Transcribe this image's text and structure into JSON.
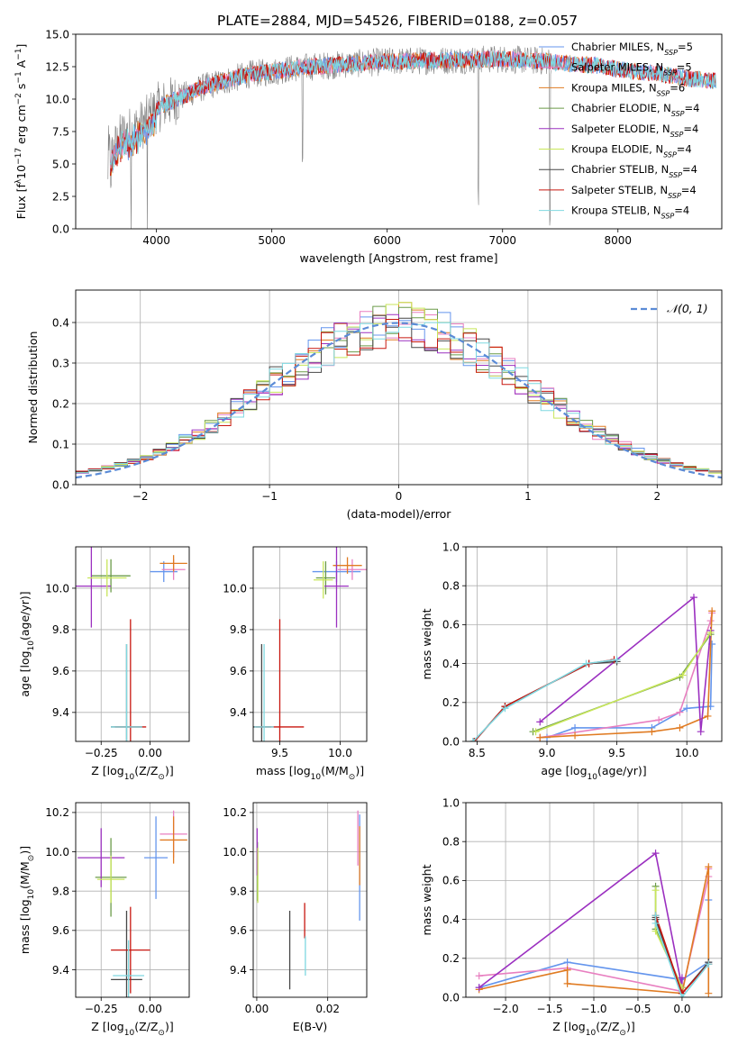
{
  "figure_title": "PLATE=2884, MJD=54526, FIBERID=0188, z=0.057",
  "colors": {
    "chabrier_miles": "#6495ed",
    "salpeter_miles": "#e87fc0",
    "kroupa_miles": "#e07b22",
    "chabrier_elodie": "#6b9b49",
    "salpeter_elodie": "#9b30c0",
    "kroupa_elodie": "#c8e65a",
    "chabrier_stelib": "#474747",
    "salpeter_stelib": "#c8160f",
    "kroupa_stelib": "#7fd8e0",
    "data": "#808080"
  },
  "chart_data": [
    {
      "id": "spectrum",
      "type": "line",
      "xlabel": "wavelength [Angstrom, rest frame]",
      "ylabel_parts": [
        "Flux [f",
        "λ",
        "10",
        "−17",
        " erg cm",
        "−2",
        " s",
        "−1",
        " A",
        "−1",
        "]"
      ],
      "xlim": [
        3300,
        8900
      ],
      "ylim": [
        0,
        15
      ],
      "xticks": [
        4000,
        5000,
        6000,
        7000,
        8000
      ],
      "xtick_labels": [
        "4000",
        "5000",
        "6000",
        "7000",
        "8000"
      ],
      "yticks": [
        0,
        2.5,
        5,
        7.5,
        10,
        12.5,
        15
      ],
      "ytick_labels": [
        "0.0",
        "2.5",
        "5.0",
        "7.5",
        "10.0",
        "12.5",
        "15.0"
      ],
      "grid": false,
      "legend_position": "right",
      "continuum": {
        "x": [
          3600,
          3700,
          3800,
          3900,
          4000,
          4200,
          4400,
          4600,
          4800,
          5000,
          5200,
          5500,
          6000,
          6500,
          7000,
          7400,
          7600,
          7800,
          8000,
          8200,
          8400,
          8600,
          8800
        ],
        "y": [
          5.5,
          7.2,
          7.6,
          8.2,
          9.3,
          10.1,
          10.9,
          11.4,
          11.9,
          12.1,
          12.4,
          12.6,
          12.9,
          13.0,
          13.1,
          12.9,
          12.7,
          12.6,
          12.3,
          12.1,
          11.9,
          11.6,
          11.4
        ]
      },
      "model_x_range": [
        3600,
        8850
      ],
      "data_x_range": [
        3580,
        7420
      ],
      "absorption_lines": [
        {
          "x": 3780,
          "depth": 12.5
        },
        {
          "x": 3920,
          "depth": 9.0
        },
        {
          "x": 5265,
          "depth": 8.0
        },
        {
          "x": 6790,
          "depth": 11.0
        },
        {
          "x": 7410,
          "depth": 12.5
        }
      ],
      "legend": [
        {
          "key": "chabrier_miles",
          "prefix": "Chabrier MILES, N",
          "sub": "SSP",
          "suffix": "=5"
        },
        {
          "key": "salpeter_miles",
          "prefix": "Salpeter MILES, N",
          "sub": "SSP",
          "suffix": "=5"
        },
        {
          "key": "kroupa_miles",
          "prefix": "Kroupa MILES, N",
          "sub": "SSP",
          "suffix": "=6"
        },
        {
          "key": "chabrier_elodie",
          "prefix": "Chabrier ELODIE, N",
          "sub": "SSP",
          "suffix": "=4"
        },
        {
          "key": "salpeter_elodie",
          "prefix": "Salpeter ELODIE, N",
          "sub": "SSP",
          "suffix": "=4"
        },
        {
          "key": "kroupa_elodie",
          "prefix": "Kroupa ELODIE, N",
          "sub": "SSP",
          "suffix": "=4"
        },
        {
          "key": "chabrier_stelib",
          "prefix": "Chabrier STELIB, N",
          "sub": "SSP",
          "suffix": "=4"
        },
        {
          "key": "salpeter_stelib",
          "prefix": "Salpeter STELIB, N",
          "sub": "SSP",
          "suffix": "=4"
        },
        {
          "key": "kroupa_stelib",
          "prefix": "Kroupa STELIB, N",
          "sub": "SSP",
          "suffix": "=4"
        }
      ]
    },
    {
      "id": "residuals",
      "type": "histogram",
      "xlabel": "(data-model)/error",
      "ylabel": "Normed distribution",
      "xlim": [
        -2.5,
        2.5
      ],
      "ylim": [
        0,
        0.48
      ],
      "xticks": [
        -2,
        -1,
        0,
        1,
        2
      ],
      "xtick_labels": [
        "−2",
        "−1",
        "0",
        "1",
        "2"
      ],
      "yticks": [
        0,
        0.1,
        0.2,
        0.3,
        0.4
      ],
      "ytick_labels": [
        "0.0",
        "0.1",
        "0.2",
        "0.3",
        "0.4"
      ],
      "grid": true,
      "bin_width": 0.1,
      "bins_start": -2.5,
      "series_keys": [
        "chabrier_miles",
        "salpeter_miles",
        "kroupa_miles",
        "chabrier_elodie",
        "salpeter_elodie",
        "kroupa_elodie",
        "chabrier_stelib",
        "salpeter_stelib",
        "kroupa_stelib"
      ],
      "normal_curve": {
        "label": "𝒩(0, 1)",
        "mean": 0,
        "sigma": 1
      },
      "legend_position": "top-right"
    },
    {
      "id": "age_vs_Z",
      "type": "errorbar",
      "xlabel_parts": [
        "Z [log",
        "10",
        "(Z/Z",
        "⊙",
        ")]"
      ],
      "ylabel_parts": [
        "age  [log",
        "10",
        "(age/yr)]"
      ],
      "xlim": [
        -0.38,
        0.2
      ],
      "ylim": [
        9.26,
        10.2
      ],
      "xticks": [
        -0.25,
        0.0
      ],
      "xtick_labels": [
        "−0.25",
        "0.00"
      ],
      "yticks": [
        9.4,
        9.6,
        9.8,
        10.0
      ],
      "ytick_labels": [
        "9.4",
        "9.6",
        "9.8",
        "10.0"
      ],
      "grid": true,
      "points": [
        {
          "key": "chabrier_miles",
          "x": 0.07,
          "y": 10.08,
          "xerr": 0.07,
          "yerr": 0.05
        },
        {
          "key": "salpeter_miles",
          "x": 0.12,
          "y": 10.09,
          "xerr": 0.06,
          "yerr": 0.05
        },
        {
          "key": "kroupa_miles",
          "x": 0.12,
          "y": 10.12,
          "xerr": 0.07,
          "yerr": 0.04
        },
        {
          "key": "chabrier_elodie",
          "x": -0.2,
          "y": 10.06,
          "xerr": 0.1,
          "yerr": 0.08
        },
        {
          "key": "salpeter_elodie",
          "x": -0.3,
          "y": 10.01,
          "xerr": 0.1,
          "yerr": 0.2
        },
        {
          "key": "kroupa_elodie",
          "x": -0.22,
          "y": 10.05,
          "xerr": 0.1,
          "yerr": 0.09
        },
        {
          "key": "chabrier_stelib",
          "x": -0.12,
          "y": 9.33,
          "xerr": 0.08,
          "yerr": 0.4
        },
        {
          "key": "salpeter_stelib",
          "x": -0.1,
          "y": 9.33,
          "xerr": 0.08,
          "yerr": 0.52
        },
        {
          "key": "kroupa_stelib",
          "x": -0.12,
          "y": 9.33,
          "xerr": 0.08,
          "yerr": 0.4
        }
      ]
    },
    {
      "id": "age_vs_mass",
      "type": "errorbar",
      "xlabel_parts": [
        "mass [log",
        "10",
        "(M/M",
        "⊙",
        ")]"
      ],
      "xlim": [
        9.28,
        10.22
      ],
      "ylim": [
        9.26,
        10.2
      ],
      "xticks": [
        9.5,
        10.0
      ],
      "xtick_labels": [
        "9.5",
        "10.0"
      ],
      "yticks": [
        9.4,
        9.6,
        9.8,
        10.0
      ],
      "ytick_labels": [
        "9.4",
        "9.6",
        "9.8",
        "10.0"
      ],
      "grid": true,
      "points": [
        {
          "key": "chabrier_miles",
          "x": 9.97,
          "y": 10.08,
          "xerr": 0.2,
          "yerr": 0.05
        },
        {
          "key": "salpeter_miles",
          "x": 10.1,
          "y": 10.09,
          "xerr": 0.12,
          "yerr": 0.05
        },
        {
          "key": "kroupa_miles",
          "x": 10.06,
          "y": 10.11,
          "xerr": 0.12,
          "yerr": 0.04
        },
        {
          "key": "chabrier_elodie",
          "x": 9.88,
          "y": 10.05,
          "xerr": 0.08,
          "yerr": 0.08
        },
        {
          "key": "salpeter_elodie",
          "x": 9.97,
          "y": 10.01,
          "xerr": 0.1,
          "yerr": 0.2
        },
        {
          "key": "kroupa_elodie",
          "x": 9.86,
          "y": 10.04,
          "xerr": 0.08,
          "yerr": 0.09
        },
        {
          "key": "chabrier_stelib",
          "x": 9.35,
          "y": 9.33,
          "xerr": 0.08,
          "yerr": 0.4
        },
        {
          "key": "salpeter_stelib",
          "x": 9.5,
          "y": 9.33,
          "xerr": 0.2,
          "yerr": 0.52
        },
        {
          "key": "kroupa_stelib",
          "x": 9.37,
          "y": 9.33,
          "xerr": 0.08,
          "yerr": 0.4
        }
      ]
    },
    {
      "id": "weights_vs_age",
      "type": "line",
      "xlabel_parts": [
        "age  [log",
        "10",
        "(age/yr)]"
      ],
      "ylabel": "mass weight",
      "xlim": [
        8.42,
        10.25
      ],
      "ylim": [
        0,
        1
      ],
      "xticks": [
        8.5,
        9.0,
        9.5,
        10.0
      ],
      "xtick_labels": [
        "8.5",
        "9.0",
        "9.5",
        "10.0"
      ],
      "yticks": [
        0,
        0.2,
        0.4,
        0.6,
        0.8,
        1.0
      ],
      "ytick_labels": [
        "0.0",
        "0.2",
        "0.4",
        "0.6",
        "0.8",
        "1.0"
      ],
      "grid": true,
      "series": [
        {
          "key": "chabrier_miles",
          "x": [
            9.0,
            9.2,
            9.75,
            10.0,
            10.17,
            10.18
          ],
          "y": [
            0.02,
            0.07,
            0.07,
            0.17,
            0.18,
            0.5
          ]
        },
        {
          "key": "salpeter_miles",
          "x": [
            8.95,
            9.8,
            9.95,
            10.17,
            10.18
          ],
          "y": [
            0.02,
            0.11,
            0.15,
            0.62,
            0.66
          ]
        },
        {
          "key": "kroupa_miles",
          "x": [
            8.95,
            9.2,
            9.75,
            9.95,
            10.15,
            10.18
          ],
          "y": [
            0.02,
            0.03,
            0.05,
            0.07,
            0.13,
            0.67
          ]
        },
        {
          "key": "chabrier_elodie",
          "x": [
            8.9,
            9.95,
            10.17
          ],
          "y": [
            0.05,
            0.33,
            0.55
          ]
        },
        {
          "key": "salpeter_elodie",
          "x": [
            8.95,
            10.05,
            10.1,
            10.17
          ],
          "y": [
            0.1,
            0.74,
            0.05,
            0.57
          ]
        },
        {
          "key": "kroupa_elodie",
          "x": [
            8.92,
            9.97,
            10.17
          ],
          "y": [
            0.05,
            0.34,
            0.56
          ]
        },
        {
          "key": "chabrier_stelib",
          "x": [
            8.48,
            8.7,
            9.3,
            9.5
          ],
          "y": [
            0.0,
            0.18,
            0.4,
            0.41
          ]
        },
        {
          "key": "salpeter_stelib",
          "x": [
            8.48,
            8.7,
            9.3,
            9.48
          ],
          "y": [
            0.0,
            0.18,
            0.4,
            0.42
          ]
        },
        {
          "key": "kroupa_stelib",
          "x": [
            8.47,
            8.7,
            9.28,
            9.5
          ],
          "y": [
            0.0,
            0.17,
            0.4,
            0.42
          ]
        }
      ]
    },
    {
      "id": "mass_vs_Z",
      "type": "errorbar",
      "xlabel_parts": [
        "Z [log",
        "10",
        "(Z/Z",
        "⊙",
        ")]"
      ],
      "ylabel_parts": [
        "mass [log",
        "10",
        "(M/M",
        "⊙",
        ")]"
      ],
      "xlim": [
        -0.38,
        0.2
      ],
      "ylim": [
        9.26,
        10.25
      ],
      "xticks": [
        -0.25,
        0.0
      ],
      "xtick_labels": [
        "−0.25",
        "0.00"
      ],
      "yticks": [
        9.4,
        9.6,
        9.8,
        10.0,
        10.2
      ],
      "ytick_labels": [
        "9.4",
        "9.6",
        "9.8",
        "10.0",
        "10.2"
      ],
      "grid": true,
      "points": [
        {
          "key": "chabrier_miles",
          "x": 0.03,
          "y": 9.97,
          "xerr": 0.06,
          "yerr": 0.21
        },
        {
          "key": "salpeter_miles",
          "x": 0.12,
          "y": 10.09,
          "xerr": 0.07,
          "yerr": 0.12
        },
        {
          "key": "kroupa_miles",
          "x": 0.12,
          "y": 10.06,
          "xerr": 0.07,
          "yerr": 0.12
        },
        {
          "key": "chabrier_elodie",
          "x": -0.2,
          "y": 9.87,
          "xerr": 0.08,
          "yerr": 0.2
        },
        {
          "key": "salpeter_elodie",
          "x": -0.25,
          "y": 9.97,
          "xerr": 0.12,
          "yerr": 0.15
        },
        {
          "key": "kroupa_elodie",
          "x": -0.2,
          "y": 9.86,
          "xerr": 0.07,
          "yerr": 0.12
        },
        {
          "key": "chabrier_stelib",
          "x": -0.12,
          "y": 9.35,
          "xerr": 0.08,
          "yerr": 0.35
        },
        {
          "key": "salpeter_stelib",
          "x": -0.1,
          "y": 9.5,
          "xerr": 0.1,
          "yerr": 0.22
        },
        {
          "key": "kroupa_stelib",
          "x": -0.11,
          "y": 9.37,
          "xerr": 0.08,
          "yerr": 0.18
        }
      ]
    },
    {
      "id": "mass_vs_ebv",
      "type": "errorbar",
      "xlabel": "E(B-V)",
      "xlim": [
        -0.001,
        0.031
      ],
      "ylim": [
        9.26,
        10.25
      ],
      "xticks": [
        0.0,
        0.02
      ],
      "xtick_labels": [
        "0.00",
        "0.02"
      ],
      "yticks": [
        9.4,
        9.6,
        9.8,
        10.0,
        10.2
      ],
      "ytick_labels": [
        "9.4",
        "9.6",
        "9.8",
        "10.0",
        "10.2"
      ],
      "grid": true,
      "points": [
        {
          "key": "chabrier_miles",
          "x": 0.029,
          "y": 9.92,
          "xerr": 0.0,
          "yerr": 0.27
        },
        {
          "key": "salpeter_miles",
          "x": 0.0285,
          "y": 10.07,
          "xerr": 0.0,
          "yerr": 0.14
        },
        {
          "key": "kroupa_miles",
          "x": 0.029,
          "y": 9.98,
          "xerr": 0.0,
          "yerr": 0.15
        },
        {
          "key": "chabrier_elodie",
          "x": 0.0002,
          "y": 9.9,
          "xerr": 0.0,
          "yerr": 0.15
        },
        {
          "key": "salpeter_elodie",
          "x": 0.0001,
          "y": 10.0,
          "xerr": 0.0,
          "yerr": 0.12
        },
        {
          "key": "kroupa_elodie",
          "x": 0.0003,
          "y": 9.88,
          "xerr": 0.0,
          "yerr": 0.14
        },
        {
          "key": "chabrier_stelib",
          "x": 0.0093,
          "y": 9.5,
          "xerr": 0.0,
          "yerr": 0.2
        },
        {
          "key": "salpeter_stelib",
          "x": 0.0135,
          "y": 9.65,
          "xerr": 0.0,
          "yerr": 0.09
        },
        {
          "key": "kroupa_stelib",
          "x": 0.0137,
          "y": 9.47,
          "xerr": 0.0,
          "yerr": 0.1
        }
      ]
    },
    {
      "id": "weights_vs_Z",
      "type": "line",
      "xlabel_parts": [
        "Z [log",
        "10",
        "(Z/Z",
        "⊙",
        ")]"
      ],
      "ylabel": "mass weight",
      "xlim": [
        -2.45,
        0.45
      ],
      "ylim": [
        0,
        1
      ],
      "xticks": [
        -2.0,
        -1.5,
        -1.0,
        -0.5,
        0.0
      ],
      "xtick_labels": [
        "−2.0",
        "−1.5",
        "−1.0",
        "−0.5",
        "0.0"
      ],
      "yticks": [
        0,
        0.2,
        0.4,
        0.6,
        0.8,
        1.0
      ],
      "ytick_labels": [
        "0.0",
        "0.2",
        "0.4",
        "0.6",
        "0.8",
        "1.0"
      ],
      "grid": true,
      "series": [
        {
          "key": "chabrier_miles",
          "x": [
            -2.3,
            -1.3,
            0.0,
            0.3,
            0.3
          ],
          "y": [
            0.05,
            0.18,
            0.09,
            0.18,
            0.5
          ]
        },
        {
          "key": "salpeter_miles",
          "x": [
            -2.3,
            -1.3,
            0.0,
            0.3,
            0.3
          ],
          "y": [
            0.11,
            0.15,
            0.03,
            0.62,
            0.66
          ]
        },
        {
          "key": "kroupa_miles",
          "x": [
            -2.3,
            -1.3,
            -1.3,
            0.0,
            0.3,
            0.3
          ],
          "y": [
            0.04,
            0.14,
            0.07,
            0.02,
            0.67,
            0.02
          ]
        },
        {
          "key": "chabrier_elodie",
          "x": [
            -0.3,
            -0.3,
            0.0
          ],
          "y": [
            0.57,
            0.35,
            0.05
          ]
        },
        {
          "key": "salpeter_elodie",
          "x": [
            -2.3,
            -0.3,
            0.0,
            0.0
          ],
          "y": [
            0.05,
            0.74,
            0.05,
            0.1
          ]
        },
        {
          "key": "kroupa_elodie",
          "x": [
            -0.3,
            -0.3,
            0.0
          ],
          "y": [
            0.55,
            0.34,
            0.05
          ]
        },
        {
          "key": "chabrier_stelib",
          "x": [
            -0.3,
            -0.3,
            0.0,
            0.3
          ],
          "y": [
            0.41,
            0.4,
            0.02,
            0.18
          ]
        },
        {
          "key": "salpeter_stelib",
          "x": [
            -0.3,
            0.0,
            0.3
          ],
          "y": [
            0.42,
            0.02,
            0.17
          ]
        },
        {
          "key": "kroupa_stelib",
          "x": [
            -0.3,
            -0.3,
            0.0,
            0.3
          ],
          "y": [
            0.42,
            0.38,
            0.0,
            0.17
          ]
        }
      ]
    }
  ]
}
